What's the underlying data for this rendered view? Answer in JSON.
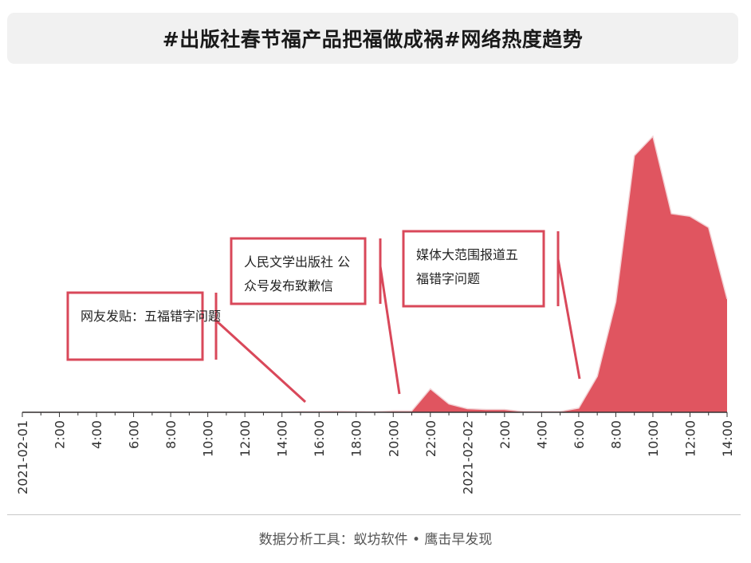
{
  "title": "#出版社春节福产品把福做成祸#网络热度趋势",
  "footer": "数据分析工具：蚁坊软件 • 鹰击早发现",
  "colors": {
    "area": "#e05560",
    "annotation": "#d9485a",
    "axis": "#333333"
  },
  "chart_data": {
    "type": "area",
    "title": "#出版社春节福产品把福做成祸#网络热度趋势",
    "xlabel": "",
    "ylabel": "",
    "tick_labels": [
      "2021-02-01",
      "2:00",
      "4:00",
      "6:00",
      "8:00",
      "10:00",
      "12:00",
      "14:00",
      "16:00",
      "18:00",
      "20:00",
      "22:00",
      "2021-02-02",
      "2:00",
      "4:00",
      "6:00",
      "8:00",
      "10:00",
      "12:00",
      "14:00"
    ],
    "tick_hours": [
      0,
      2,
      4,
      6,
      8,
      10,
      12,
      14,
      16,
      18,
      20,
      22,
      24,
      26,
      28,
      30,
      32,
      34,
      36,
      38
    ],
    "x_hours": [
      0,
      1,
      2,
      3,
      4,
      5,
      6,
      7,
      8,
      9,
      10,
      11,
      12,
      13,
      14,
      15,
      16,
      17,
      18,
      19,
      20,
      21,
      22,
      23,
      24,
      25,
      26,
      27,
      28,
      29,
      30,
      31,
      32,
      33,
      34,
      35,
      36,
      37,
      38
    ],
    "values": [
      0,
      0,
      0,
      0,
      0,
      0,
      0,
      0,
      0,
      0,
      0,
      0,
      0,
      0,
      0,
      0.3,
      0.3,
      0.4,
      0.3,
      0.2,
      0.5,
      0.5,
      8.5,
      3.0,
      1.3,
      1.0,
      1.0,
      0.3,
      0.3,
      0.3,
      1.5,
      13,
      40,
      93,
      100,
      72,
      71,
      67,
      41
    ],
    "ylim": [
      0,
      100
    ],
    "grid": false,
    "annotations": [
      {
        "text": "网友发贴：五福错字问题",
        "lines": [
          "网友发贴：五福错字问题"
        ],
        "x_hour": 15.2
      },
      {
        "text": "人民文学出版社 公众号发布致歉信",
        "lines": [
          "人民文学出版社 公",
          "众号发布致歉信"
        ],
        "x_hour": 20.2
      },
      {
        "text": "媒体大范围报道五福错字问题",
        "lines": [
          "媒体大范围报道五",
          "福错字问题"
        ],
        "x_hour": 29.2
      }
    ]
  }
}
